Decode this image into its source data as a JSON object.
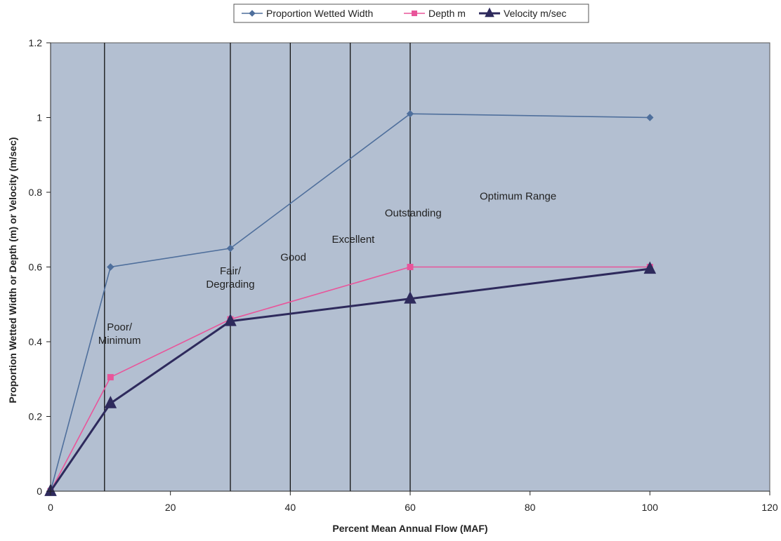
{
  "chart_data": {
    "type": "line",
    "title": "",
    "xlabel": "Percent Mean Annual Flow (MAF)",
    "ylabel": "Proportion Wetted Width or Depth (m) or Velocity (m/sec)",
    "xlim": [
      0,
      120
    ],
    "ylim": [
      0,
      1.2
    ],
    "xticks": [
      "0",
      "20",
      "40",
      "60",
      "80",
      "100",
      "120"
    ],
    "yticks": [
      "0",
      "0.2",
      "0.4",
      "0.6",
      "0.8",
      "1",
      "1.2"
    ],
    "legend_position": "top-center",
    "grid": false,
    "plot_background": "#b3bfd1",
    "series": [
      {
        "name": "Proportion Wetted Width",
        "color": "#4f6f9c",
        "marker": "diamond",
        "x": [
          0,
          10,
          30,
          60,
          100
        ],
        "y": [
          0,
          0.6,
          0.65,
          1.01,
          1.0
        ]
      },
      {
        "name": "Depth m",
        "color": "#e8559a",
        "marker": "square",
        "x": [
          0,
          10,
          30,
          60,
          100
        ],
        "y": [
          0,
          0.305,
          0.46,
          0.6,
          0.6
        ]
      },
      {
        "name": "Velocity m/sec",
        "color": "#2e2a5c",
        "marker": "triangle",
        "x": [
          0,
          10,
          30,
          60,
          100
        ],
        "y": [
          0,
          0.235,
          0.455,
          0.515,
          0.595
        ]
      }
    ],
    "vertical_lines_x": [
      9,
      30,
      40,
      50,
      60
    ],
    "annotations": [
      {
        "lines": [
          "Poor/",
          "Minimum"
        ],
        "x": 11.5,
        "y": 0.43
      },
      {
        "lines": [
          "Fair/",
          "Degrading"
        ],
        "x": 30,
        "y": 0.58
      },
      {
        "lines": [
          "Good"
        ],
        "x": 40.5,
        "y": 0.617
      },
      {
        "lines": [
          "Excellent"
        ],
        "x": 50.5,
        "y": 0.665
      },
      {
        "lines": [
          "Outstanding"
        ],
        "x": 60.5,
        "y": 0.735
      },
      {
        "lines": [
          "Optimum Range"
        ],
        "x": 78,
        "y": 0.78
      }
    ]
  }
}
